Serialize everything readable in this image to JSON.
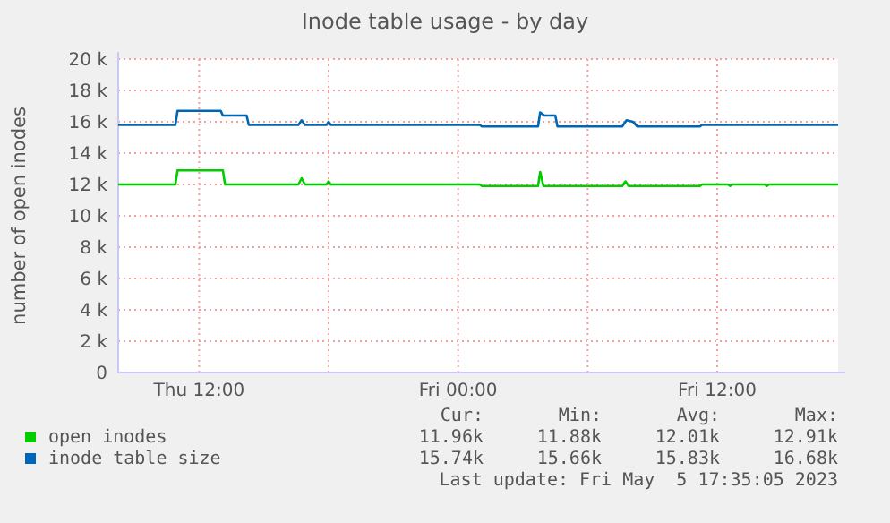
{
  "chart_data": {
    "type": "line",
    "title": "Inode table usage - by day",
    "ylabel": "number of open inodes",
    "xlim": [
      "2023-05-04T08:15",
      "2023-05-05T17:36"
    ],
    "xticks": [
      {
        "value": "2023-05-04T12:00",
        "label": "Thu 12:00"
      },
      {
        "value": "2023-05-04T18:00",
        "label": null
      },
      {
        "value": "2023-05-05T00:00",
        "label": "Fri 00:00"
      },
      {
        "value": "2023-05-05T06:00",
        "label": null
      },
      {
        "value": "2023-05-05T12:00",
        "label": "Fri 12:00"
      }
    ],
    "ylim": [
      0,
      20000
    ],
    "yticks": [
      0,
      {
        "value": 2000,
        "label": "2 k"
      },
      {
        "value": 4000,
        "label": "4 k"
      },
      {
        "value": 6000,
        "label": "6 k"
      },
      {
        "value": 8000,
        "label": "8 k"
      },
      {
        "value": 10000,
        "label": "10 k"
      },
      {
        "value": 12000,
        "label": "12 k"
      },
      {
        "value": 14000,
        "label": "14 k"
      },
      {
        "value": 16000,
        "label": "16 k"
      },
      {
        "value": 18000,
        "label": "18 k"
      },
      {
        "value": 20000,
        "label": "20 k"
      }
    ],
    "grid": true,
    "legend": "bottom",
    "marker": "none",
    "line_style": "solid",
    "series": [
      {
        "name": "open inodes",
        "color": "#00cc00",
        "x": [
          "2023-05-04T08:15",
          "2023-05-04T10:54",
          "2023-05-04T11:00",
          "2023-05-04T13:06",
          "2023-05-04T13:12",
          "2023-05-04T16:36",
          "2023-05-04T16:45",
          "2023-05-04T16:54",
          "2023-05-04T17:54",
          "2023-05-04T18:00",
          "2023-05-04T18:06",
          "2023-05-05T01:00",
          "2023-05-05T01:06",
          "2023-05-05T03:42",
          "2023-05-05T03:48",
          "2023-05-05T03:57",
          "2023-05-05T07:36",
          "2023-05-05T07:45",
          "2023-05-05T07:54",
          "2023-05-05T11:12",
          "2023-05-05T11:18",
          "2023-05-05T12:30",
          "2023-05-05T12:36",
          "2023-05-05T12:42",
          "2023-05-05T14:12",
          "2023-05-05T14:18",
          "2023-05-05T14:24",
          "2023-05-05T17:36"
        ],
        "values": [
          12000,
          12000,
          12900,
          12900,
          12000,
          12000,
          12400,
          12000,
          12000,
          12200,
          12000,
          12000,
          11900,
          11900,
          12800,
          11900,
          11900,
          12200,
          11900,
          11900,
          12000,
          12000,
          11900,
          12000,
          12000,
          11900,
          12000,
          12000
        ]
      },
      {
        "name": "inode table size",
        "color": "#0066b3",
        "x": [
          "2023-05-04T08:15",
          "2023-05-04T10:54",
          "2023-05-04T11:00",
          "2023-05-04T13:00",
          "2023-05-04T13:06",
          "2023-05-04T14:12",
          "2023-05-04T14:18",
          "2023-05-04T16:36",
          "2023-05-04T16:45",
          "2023-05-04T16:54",
          "2023-05-04T17:54",
          "2023-05-04T18:00",
          "2023-05-04T18:06",
          "2023-05-05T01:00",
          "2023-05-05T01:06",
          "2023-05-05T03:42",
          "2023-05-05T03:48",
          "2023-05-05T04:00",
          "2023-05-05T04:30",
          "2023-05-05T04:36",
          "2023-05-05T07:36",
          "2023-05-05T07:48",
          "2023-05-05T08:06",
          "2023-05-05T08:18",
          "2023-05-05T11:12",
          "2023-05-05T11:18",
          "2023-05-05T17:36"
        ],
        "values": [
          15800,
          15800,
          16700,
          16700,
          16400,
          16400,
          15800,
          15800,
          16100,
          15800,
          15800,
          16000,
          15800,
          15800,
          15700,
          15700,
          16600,
          16400,
          16400,
          15700,
          15700,
          16100,
          16000,
          15700,
          15700,
          15800,
          15800
        ]
      }
    ],
    "annotations": [
      "Cur:",
      "Min:",
      "Avg:",
      "Max:",
      "11.96k",
      "11.88k",
      "12.01k",
      "12.91k",
      "15.74k",
      "15.66k",
      "15.83k",
      "16.68k",
      "Last update: Fri May  5 17:35:05 2023"
    ]
  }
}
